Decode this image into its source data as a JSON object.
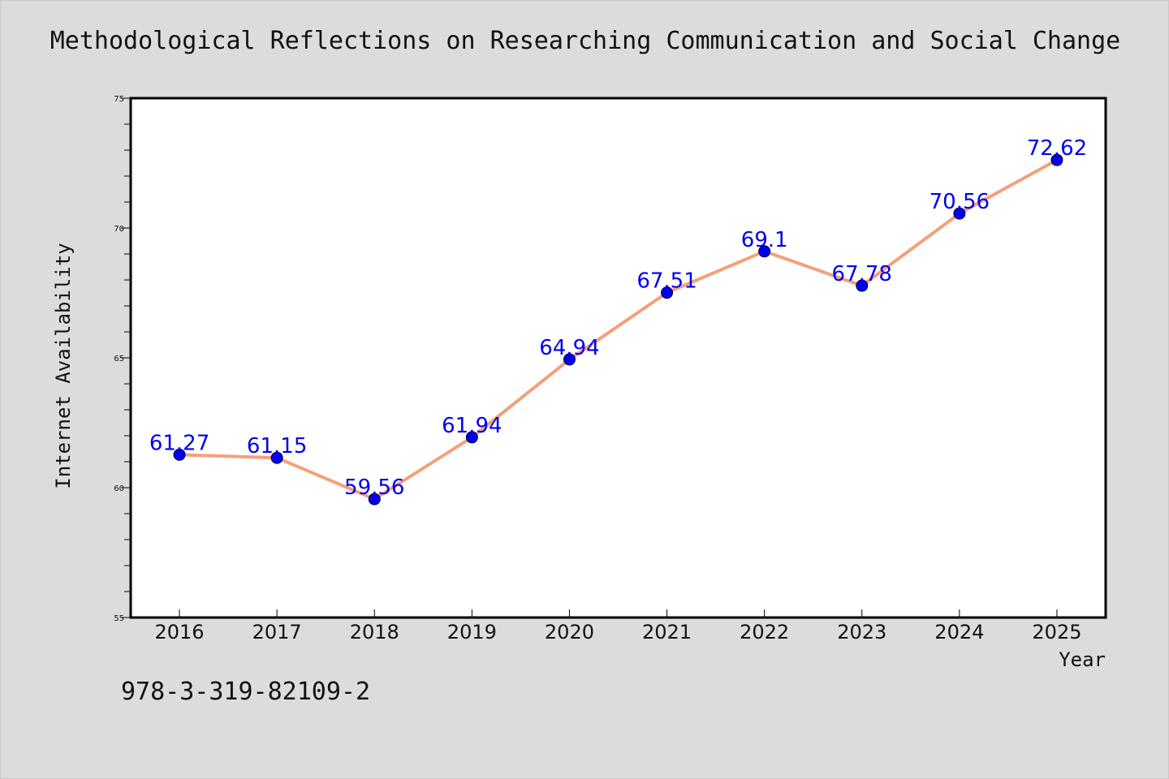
{
  "chart_data": {
    "type": "line",
    "title": "Methodological Reflections on Researching Communication and Social Change",
    "xlabel": "Year",
    "ylabel": "Internet Availability",
    "categories": [
      "2016",
      "2017",
      "2018",
      "2019",
      "2020",
      "2021",
      "2022",
      "2023",
      "2024",
      "2025"
    ],
    "series": [
      {
        "values": [
          61.27,
          61.15,
          59.56,
          61.94,
          64.94,
          67.51,
          69.1,
          67.78,
          70.56,
          72.62
        ]
      }
    ],
    "data_labels": [
      "61.27",
      "61.15",
      "59.56",
      "61.94",
      "64.94",
      "67.51",
      "69.1",
      "67.78",
      "70.56",
      "72.62"
    ],
    "ylim": [
      55,
      75
    ],
    "yticks": [
      "55",
      "60",
      "65",
      "70",
      "75"
    ],
    "grid": false,
    "colors": {
      "line": "#f4a07a",
      "marker": "#0000ee",
      "data_label": "#0000ee"
    }
  },
  "footer": {
    "isbn": "978-3-319-82109-2"
  }
}
